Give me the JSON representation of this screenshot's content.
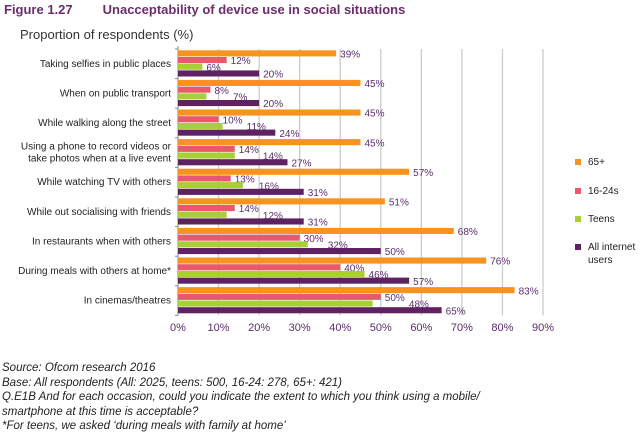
{
  "title": {
    "figure": "Figure 1.27",
    "text": "Unacceptability of device use in social situations"
  },
  "chart_data": {
    "type": "bar",
    "orientation": "horizontal",
    "title": "Unacceptability of device use in social situations",
    "ylabel": "Proportion of respondents (%)",
    "categories": [
      [
        "Taking selfies in public places"
      ],
      [
        "When on public transport"
      ],
      [
        "While walking along the street"
      ],
      [
        "Using a phone to record videos or",
        "take photos when at a live event"
      ],
      [
        "While watching TV with others"
      ],
      [
        "While out socialising with friends"
      ],
      [
        "In restaurants when with others"
      ],
      [
        "During meals with others at home*"
      ],
      [
        "In cinemas/theatres"
      ]
    ],
    "series": [
      {
        "name": "65+",
        "color": "#F7931E",
        "values": [
          39,
          45,
          45,
          45,
          57,
          51,
          68,
          76,
          83
        ]
      },
      {
        "name": "16-24s",
        "color": "#E85A6B",
        "values": [
          12,
          8,
          10,
          14,
          13,
          14,
          30,
          40,
          50
        ]
      },
      {
        "name": "Teens",
        "color": "#A8CF38",
        "values": [
          6,
          7,
          11,
          14,
          16,
          12,
          32,
          46,
          48
        ]
      },
      {
        "name": "All internet users",
        "legend_lines": [
          "All internet",
          "users"
        ],
        "color": "#5E2262",
        "values": [
          20,
          20,
          24,
          27,
          31,
          31,
          50,
          57,
          65
        ]
      }
    ],
    "xlim": [
      0,
      90
    ],
    "xticks": [
      "0%",
      "10%",
      "20%",
      "30%",
      "40%",
      "50%",
      "60%",
      "70%",
      "80%",
      "90%"
    ],
    "grid": true,
    "legend": "right"
  },
  "notes": [
    "Source: Ofcom research 2016",
    "Base: All respondents (All: 2025, teens: 500, 16-24: 278, 65+: 421)",
    "Q.E1B And for each occasion, could you indicate the extent to which you think using a mobile/",
    "smartphone at this time is acceptable?",
    "*For teens, we asked ‘during meals with family at home’"
  ]
}
